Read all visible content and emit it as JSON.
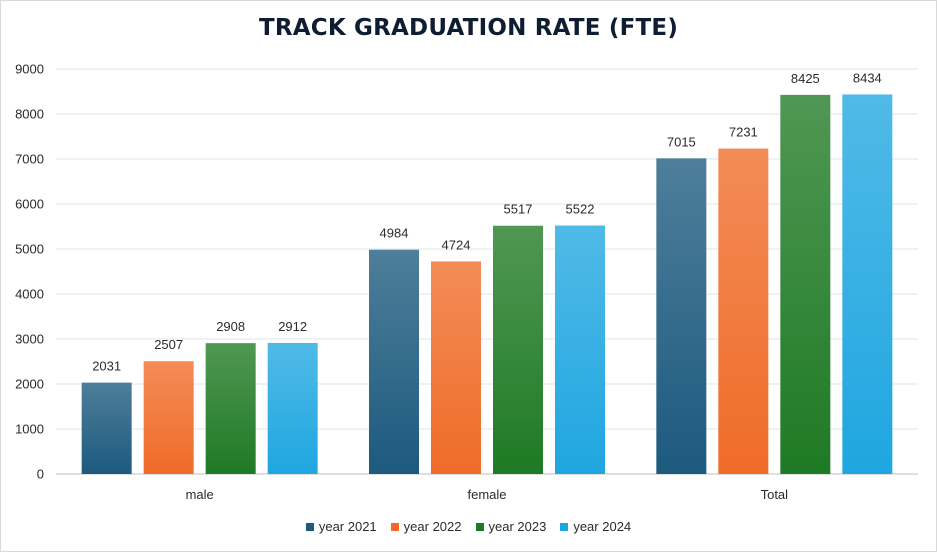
{
  "chart_data": {
    "type": "bar",
    "title": "TRACK GRADUATION RATE (FTE)",
    "xlabel": "",
    "ylabel": "",
    "categories": [
      "male",
      "female",
      "Total"
    ],
    "ylim": [
      0,
      9000
    ],
    "yticks": [
      0,
      1000,
      2000,
      3000,
      4000,
      5000,
      6000,
      7000,
      8000,
      9000
    ],
    "grid": true,
    "legend_position": "bottom",
    "series": [
      {
        "name": "year 2021",
        "values": [
          2031,
          4984,
          7015
        ],
        "color": "#1c5a7e"
      },
      {
        "name": "year 2022",
        "values": [
          2507,
          4724,
          7231
        ],
        "color": "#f06b28"
      },
      {
        "name": "year 2023",
        "values": [
          2908,
          5517,
          8425
        ],
        "color": "#1e7a24"
      },
      {
        "name": "year 2024",
        "values": [
          2912,
          5522,
          8434
        ],
        "color": "#1fa6e0"
      }
    ]
  }
}
